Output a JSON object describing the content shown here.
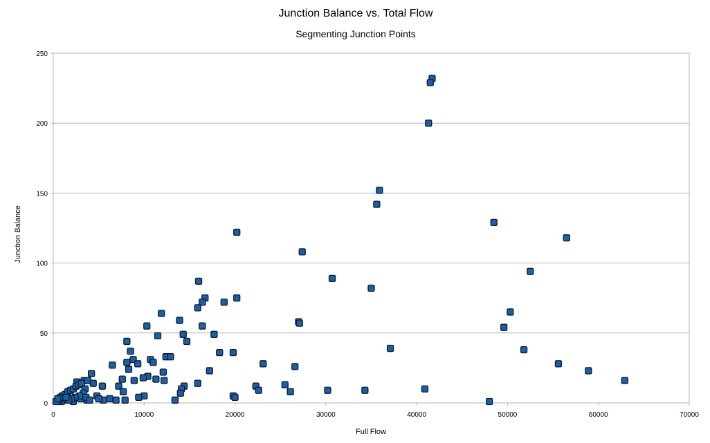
{
  "chart_data": {
    "type": "scatter",
    "title": "Junction Balance vs. Total Flow",
    "subtitle": "Segmenting Junction Points",
    "xlabel": "Full Flow",
    "ylabel": "Junction Balance",
    "xlim": [
      0,
      70000
    ],
    "ylim": [
      0,
      250
    ],
    "x_ticks": [
      0,
      10000,
      20000,
      30000,
      40000,
      50000,
      60000,
      70000
    ],
    "y_ticks": [
      0,
      50,
      100,
      150,
      200,
      250
    ],
    "x_tick_labels": [
      "0",
      "10000",
      "20000",
      "30000",
      "40000",
      "50000",
      "60000",
      "70000"
    ],
    "y_tick_labels": [
      "0",
      "50",
      "100",
      "150",
      "200",
      "250"
    ],
    "grid": "horizontal",
    "legend": "none",
    "colors": {
      "marker_fill": "#1f5fa0",
      "marker_stroke": "#0a1c33",
      "gridline": "#b3b3b3",
      "axis": "#b3b3b3"
    },
    "series": [
      {
        "points": [
          [
            41700,
            232
          ],
          [
            41500,
            229
          ],
          [
            41300,
            200
          ],
          [
            35900,
            152
          ],
          [
            35600,
            142
          ],
          [
            48500,
            129
          ],
          [
            20200,
            122
          ],
          [
            56500,
            118
          ],
          [
            27400,
            108
          ],
          [
            52500,
            94
          ],
          [
            30700,
            89
          ],
          [
            16000,
            87
          ],
          [
            35000,
            82
          ],
          [
            20200,
            75
          ],
          [
            16700,
            75
          ],
          [
            18800,
            72
          ],
          [
            16400,
            72
          ],
          [
            15900,
            68
          ],
          [
            50300,
            65
          ],
          [
            11900,
            64
          ],
          [
            13900,
            59
          ],
          [
            27000,
            58
          ],
          [
            27100,
            57
          ],
          [
            10300,
            55
          ],
          [
            16400,
            55
          ],
          [
            49600,
            54
          ],
          [
            11500,
            48
          ],
          [
            17700,
            49
          ],
          [
            14300,
            49
          ],
          [
            14700,
            44
          ],
          [
            8100,
            44
          ],
          [
            37100,
            39
          ],
          [
            51800,
            38
          ],
          [
            8500,
            37
          ],
          [
            18300,
            36
          ],
          [
            19800,
            36
          ],
          [
            12400,
            33
          ],
          [
            12900,
            33
          ],
          [
            10700,
            31
          ],
          [
            8800,
            31
          ],
          [
            8100,
            29
          ],
          [
            11000,
            29
          ],
          [
            9300,
            28
          ],
          [
            23100,
            28
          ],
          [
            55600,
            28
          ],
          [
            6500,
            27
          ],
          [
            26600,
            26
          ],
          [
            8300,
            24
          ],
          [
            17200,
            23
          ],
          [
            58900,
            23
          ],
          [
            12100,
            22
          ],
          [
            4200,
            21
          ],
          [
            10400,
            19
          ],
          [
            9900,
            18
          ],
          [
            7600,
            17
          ],
          [
            11300,
            17
          ],
          [
            12200,
            16
          ],
          [
            8900,
            16
          ],
          [
            62900,
            16
          ],
          [
            2600,
            15
          ],
          [
            3400,
            16
          ],
          [
            3800,
            16
          ],
          [
            4400,
            14
          ],
          [
            5400,
            12
          ],
          [
            15900,
            14
          ],
          [
            25500,
            13
          ],
          [
            7200,
            12
          ],
          [
            22300,
            12
          ],
          [
            14400,
            12
          ],
          [
            14100,
            10
          ],
          [
            40900,
            10
          ],
          [
            22600,
            9
          ],
          [
            30200,
            9
          ],
          [
            34300,
            9
          ],
          [
            26100,
            8
          ],
          [
            7700,
            8
          ],
          [
            14000,
            7
          ],
          [
            19800,
            5
          ],
          [
            20000,
            4
          ],
          [
            10000,
            5
          ],
          [
            9400,
            4
          ],
          [
            13400,
            2
          ],
          [
            7900,
            2
          ],
          [
            6900,
            2
          ],
          [
            6200,
            3
          ],
          [
            5500,
            2
          ],
          [
            3700,
            2
          ],
          [
            3000,
            3
          ],
          [
            2200,
            1
          ],
          [
            1500,
            2
          ],
          [
            900,
            1
          ],
          [
            600,
            2
          ],
          [
            300,
            1
          ],
          [
            48000,
            1
          ],
          [
            4800,
            5
          ],
          [
            5000,
            3
          ],
          [
            1000,
            5
          ],
          [
            1300,
            6
          ],
          [
            1600,
            8
          ],
          [
            1900,
            9
          ],
          [
            2200,
            10
          ],
          [
            2500,
            12
          ],
          [
            2800,
            13
          ],
          [
            3100,
            14
          ],
          [
            3500,
            10
          ],
          [
            3300,
            7
          ],
          [
            2900,
            5
          ],
          [
            2400,
            4
          ],
          [
            2000,
            3
          ],
          [
            1700,
            2
          ],
          [
            1100,
            3
          ],
          [
            800,
            4
          ],
          [
            500,
            3
          ],
          [
            1400,
            4
          ],
          [
            3600,
            4
          ],
          [
            4000,
            2
          ]
        ]
      }
    ]
  }
}
